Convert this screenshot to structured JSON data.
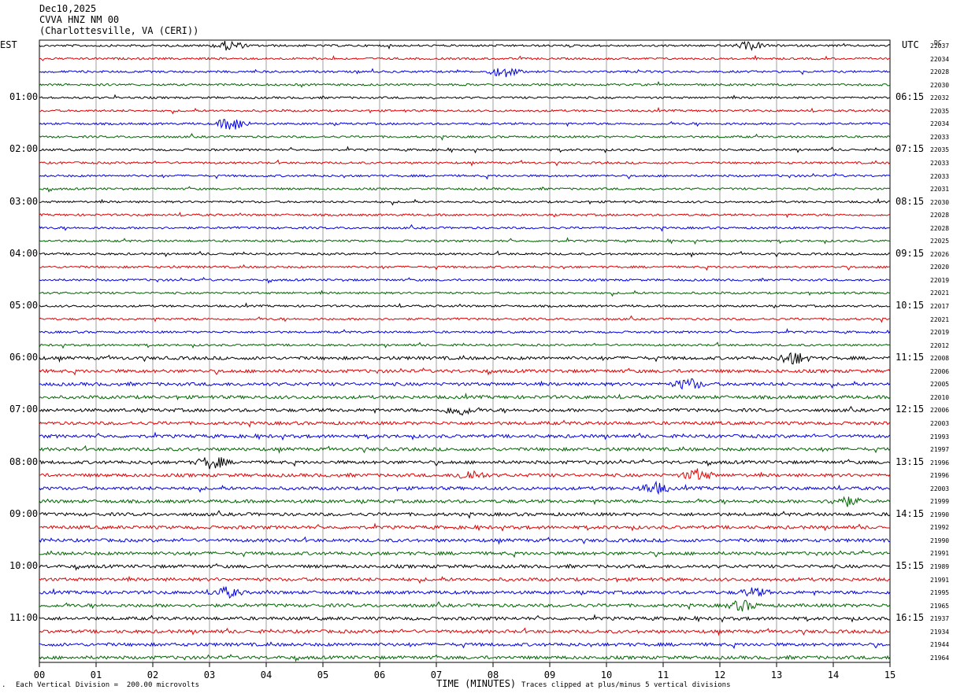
{
  "header": {
    "date": "Dec10,2025",
    "station": "CVVA HNZ NM 00",
    "location": "(Charlottesville, VA (CERI))"
  },
  "left_tz": "EST",
  "right_tz": "UTC",
  "dc_label": "DC",
  "footer": {
    "scale_note": "Each Vertical Division =  200.00 microvolts",
    "clip_note": "Traces clipped at plus/minus 5 vertical divisions",
    "corner_mark": "."
  },
  "chart_data": {
    "type": "line",
    "title": "CVVA HNZ NM 00",
    "xlabel": "TIME (MINUTES)",
    "x_ticks": [
      "00",
      "01",
      "02",
      "03",
      "04",
      "05",
      "06",
      "07",
      "08",
      "09",
      "10",
      "11",
      "12",
      "13",
      "14",
      "15"
    ],
    "xlim": [
      0,
      15
    ],
    "trace_colors": [
      "#000000",
      "#e00000",
      "#0000e0",
      "#006400"
    ],
    "left_time_labels": [
      "01:00",
      "02:00",
      "03:00",
      "04:00",
      "05:00",
      "06:00",
      "07:00",
      "08:00",
      "09:00",
      "10:00",
      "11:00"
    ],
    "right_time_labels": [
      "06:15",
      "07:15",
      "08:15",
      "09:15",
      "10:15",
      "11:15",
      "12:15",
      "13:15",
      "14:15",
      "15:15",
      "16:15"
    ],
    "dc_offsets": [
      "22037",
      "22034",
      "22028",
      "22030",
      "22032",
      "22035",
      "22034",
      "22033",
      "22035",
      "22033",
      "22033",
      "22031",
      "22030",
      "22028",
      "22028",
      "22025",
      "22026",
      "22020",
      "22019",
      "22021",
      "22017",
      "22021",
      "22019",
      "22012",
      "22008",
      "22006",
      "22005",
      "22010",
      "22006",
      "22003",
      "21993",
      "21997",
      "21996",
      "21996",
      "22003",
      "21999",
      "21990",
      "21992",
      "21990",
      "21991",
      "21989",
      "21991",
      "21995",
      "21965",
      "21937",
      "21934",
      "21944",
      "21964"
    ],
    "events": [
      {
        "trace": 0,
        "minute": 3.35,
        "amp": 6
      },
      {
        "trace": 0,
        "minute": 12.55,
        "amp": 5
      },
      {
        "trace": 2,
        "minute": 8.2,
        "amp": 7
      },
      {
        "trace": 6,
        "minute": 3.4,
        "amp": 9
      },
      {
        "trace": 24,
        "minute": 13.3,
        "amp": 8
      },
      {
        "trace": 26,
        "minute": 11.45,
        "amp": 7
      },
      {
        "trace": 28,
        "minute": 7.4,
        "amp": 6
      },
      {
        "trace": 32,
        "minute": 3.05,
        "amp": 8
      },
      {
        "trace": 33,
        "minute": 7.6,
        "amp": 6
      },
      {
        "trace": 33,
        "minute": 11.6,
        "amp": 7
      },
      {
        "trace": 34,
        "minute": 10.85,
        "amp": 7
      },
      {
        "trace": 35,
        "minute": 14.2,
        "amp": 6
      },
      {
        "trace": 42,
        "minute": 3.3,
        "amp": 6
      },
      {
        "trace": 42,
        "minute": 12.6,
        "amp": 5
      },
      {
        "trace": 43,
        "minute": 12.4,
        "amp": 6
      }
    ]
  }
}
